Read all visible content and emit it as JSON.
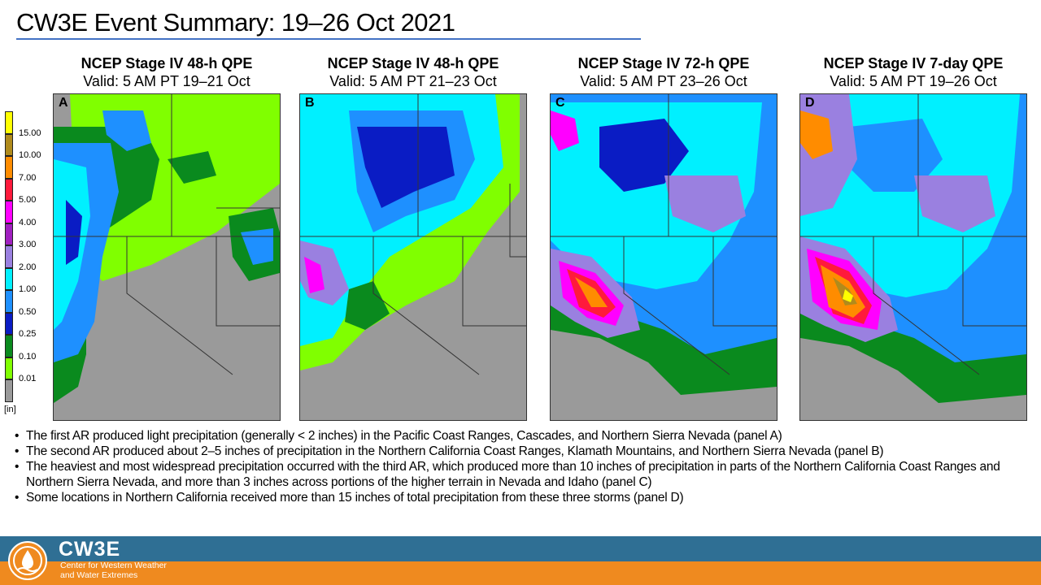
{
  "slide": {
    "title": "CW3E Event Summary: 19–26 Oct 2021"
  },
  "panels": [
    {
      "letter": "A",
      "title": "NCEP Stage IV 48-h QPE",
      "valid": "Valid: 5 AM PT 19–21 Oct"
    },
    {
      "letter": "B",
      "title": "NCEP Stage IV 48-h QPE",
      "valid": "Valid: 5 AM PT 21–23 Oct"
    },
    {
      "letter": "C",
      "title": "NCEP Stage IV 72-h QPE",
      "valid": "Valid: 5 AM PT 23–26 Oct"
    },
    {
      "letter": "D",
      "title": "NCEP Stage IV 7-day QPE",
      "valid": "Valid: 5 AM PT 19–26 Oct"
    }
  ],
  "legend": {
    "unit": "[in]",
    "levels": [
      {
        "label": "15.00",
        "color": "#ffff00"
      },
      {
        "label": "10.00",
        "color": "#b08b1c"
      },
      {
        "label": "7.00",
        "color": "#ff8c00"
      },
      {
        "label": "5.00",
        "color": "#ff1a3c"
      },
      {
        "label": "4.00",
        "color": "#ff00ff"
      },
      {
        "label": "3.00",
        "color": "#a020c0"
      },
      {
        "label": "2.00",
        "color": "#9a80e0"
      },
      {
        "label": "1.00",
        "color": "#00f0ff"
      },
      {
        "label": "0.50",
        "color": "#1e90ff"
      },
      {
        "label": "0.25",
        "color": "#0a1cc4"
      },
      {
        "label": "0.10",
        "color": "#0a8a1e"
      },
      {
        "label": "0.01",
        "color": "#80ff00"
      }
    ],
    "no_data_color": "#9a9a9a"
  },
  "bullets": [
    "The first AR produced light precipitation (generally < 2 inches) in the Pacific Coast Ranges, Cascades, and Northern Sierra Nevada (panel A)",
    "The second AR produced about 2–5 inches of precipitation in the Northern California Coast Ranges, Klamath Mountains, and Northern Sierra Nevada (panel B)",
    "The heaviest and most widespread precipitation occurred with the third AR, which produced more than 10 inches of precipitation in parts of the Northern California Coast Ranges and Northern Sierra Nevada, and more than 3 inches across portions of the higher terrain in Nevada and Idaho (panel C)",
    "Some locations in Northern California received more than 15 inches of total precipitation from these three storms (panel D)"
  ],
  "footer": {
    "logo_name": "CW3E",
    "logo_tagline_1": "Center for Western Weather",
    "logo_tagline_2": "and Water Extremes",
    "band_top_color": "#2f6f94",
    "band_bottom_color": "#ef8a1f"
  }
}
